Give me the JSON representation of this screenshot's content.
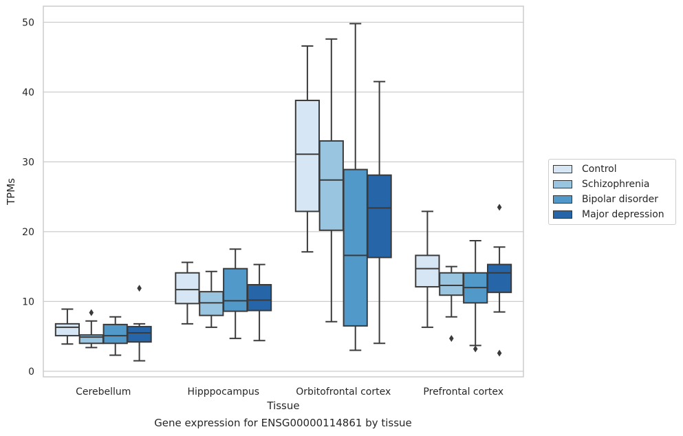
{
  "chart_data": {
    "type": "boxplot",
    "title": "",
    "caption": "Gene expression for ENSG00000114861 by tissue",
    "xlabel": "Tissue",
    "ylabel": "TPMs",
    "ylim": [
      -0.8,
      52.3
    ],
    "yticks": [
      0,
      10,
      20,
      30,
      40,
      50
    ],
    "grid": "horizontal",
    "legend_placement": "right",
    "categories": [
      "Cerebellum",
      "Hipppocampus",
      "Orbitofrontal cortex",
      "Prefrontal cortex"
    ],
    "series": [
      {
        "name": "Control",
        "color": "#d6e6f4",
        "boxes": [
          {
            "whisker_low": 3.9,
            "q1": 5.1,
            "median": 6.3,
            "q3": 6.8,
            "whisker_high": 8.9,
            "outliers": []
          },
          {
            "whisker_low": 6.8,
            "q1": 9.7,
            "median": 11.7,
            "q3": 14.1,
            "whisker_high": 15.6,
            "outliers": []
          },
          {
            "whisker_low": 17.1,
            "q1": 22.9,
            "median": 31.1,
            "q3": 38.8,
            "whisker_high": 46.6,
            "outliers": []
          },
          {
            "whisker_low": 6.3,
            "q1": 12.1,
            "median": 14.7,
            "q3": 16.6,
            "whisker_high": 22.9,
            "outliers": []
          }
        ]
      },
      {
        "name": "Schizophrenia",
        "color": "#9ac5e0",
        "boxes": [
          {
            "whisker_low": 3.4,
            "q1": 4.0,
            "median": 4.9,
            "q3": 5.2,
            "whisker_high": 7.2,
            "outliers": [
              8.4
            ]
          },
          {
            "whisker_low": 6.3,
            "q1": 8.0,
            "median": 9.8,
            "q3": 11.4,
            "whisker_high": 14.3,
            "outliers": []
          },
          {
            "whisker_low": 7.1,
            "q1": 20.2,
            "median": 27.4,
            "q3": 33.0,
            "whisker_high": 47.6,
            "outliers": []
          },
          {
            "whisker_low": 7.8,
            "q1": 10.9,
            "median": 12.3,
            "q3": 14.1,
            "whisker_high": 15.0,
            "outliers": [
              4.7
            ]
          }
        ]
      },
      {
        "name": "Bipolar disorder",
        "color": "#5199c9",
        "boxes": [
          {
            "whisker_low": 2.3,
            "q1": 4.0,
            "median": 5.1,
            "q3": 6.7,
            "whisker_high": 7.8,
            "outliers": []
          },
          {
            "whisker_low": 4.7,
            "q1": 8.6,
            "median": 10.1,
            "q3": 14.7,
            "whisker_high": 17.5,
            "outliers": []
          },
          {
            "whisker_low": 3.0,
            "q1": 6.5,
            "median": 16.6,
            "q3": 28.9,
            "whisker_high": 49.8,
            "outliers": []
          },
          {
            "whisker_low": 3.7,
            "q1": 9.8,
            "median": 12.0,
            "q3": 14.1,
            "whisker_high": 18.7,
            "outliers": [
              3.2
            ]
          }
        ]
      },
      {
        "name": "Major depression",
        "color": "#2565a8",
        "boxes": [
          {
            "whisker_low": 1.5,
            "q1": 4.2,
            "median": 5.5,
            "q3": 6.4,
            "whisker_high": 6.8,
            "outliers": [
              11.9
            ]
          },
          {
            "whisker_low": 4.4,
            "q1": 8.7,
            "median": 10.2,
            "q3": 12.4,
            "whisker_high": 15.3,
            "outliers": []
          },
          {
            "whisker_low": 4.0,
            "q1": 16.3,
            "median": 23.4,
            "q3": 28.1,
            "whisker_high": 41.5,
            "outliers": []
          },
          {
            "whisker_low": 8.5,
            "q1": 11.3,
            "median": 14.1,
            "q3": 15.3,
            "whisker_high": 17.8,
            "outliers": [
              2.6,
              23.5
            ]
          }
        ]
      }
    ]
  }
}
